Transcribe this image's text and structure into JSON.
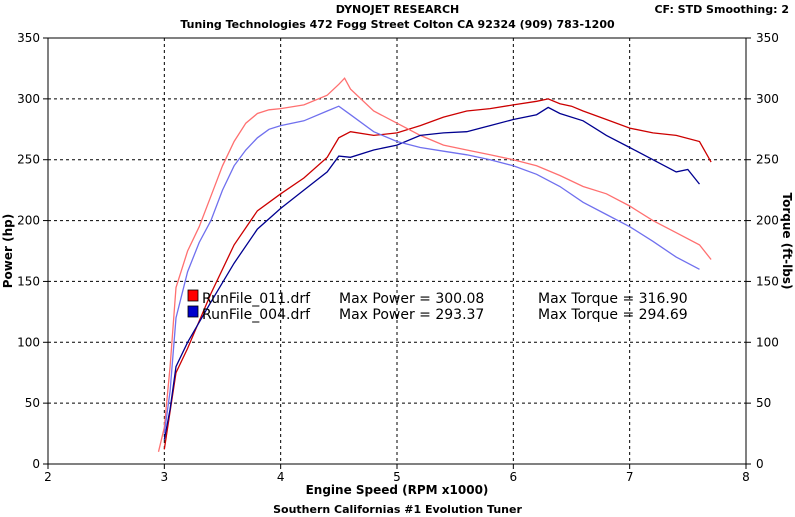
{
  "header": {
    "brand": "DYNOJET RESEARCH",
    "shop_line": "Tuning Technologies 472 Fogg Street Colton CA 92324 (909) 783-1200",
    "settings": "CF: STD  Smoothing: 2"
  },
  "footer": {
    "tagline": "Southern Californias #1 Evolution Tuner"
  },
  "chart_data": {
    "type": "line",
    "xlabel": "Engine Speed (RPM x1000)",
    "ylabel": "Power (hp)",
    "y2label": "Torque (ft-lbs)",
    "xlim": [
      2,
      8
    ],
    "ylim": [
      0,
      350
    ],
    "y2lim": [
      0,
      350
    ],
    "x_ticks": [
      2,
      3,
      4,
      5,
      6,
      7,
      8
    ],
    "y_ticks": [
      0,
      50,
      100,
      150,
      200,
      250,
      300,
      350
    ],
    "grid": true,
    "legend_position": "center-left",
    "legend": [
      {
        "file": "RunFile_011.drf",
        "max_power_label": "Max Power = 300.08",
        "max_torque_label": "Max Torque = 316.90",
        "color": "#ff0000"
      },
      {
        "file": "RunFile_004.drf",
        "max_power_label": "Max Power = 293.37",
        "max_torque_label": "Max Torque = 294.69",
        "color": "#0000cc"
      }
    ],
    "series": [
      {
        "name": "RunFile_011.drf",
        "measure": "power",
        "color": "#cc0000",
        "x": [
          3.0,
          3.1,
          3.2,
          3.4,
          3.6,
          3.8,
          4.0,
          4.2,
          4.4,
          4.5,
          4.6,
          4.8,
          5.0,
          5.2,
          5.4,
          5.6,
          5.8,
          6.0,
          6.2,
          6.3,
          6.4,
          6.5,
          6.6,
          6.8,
          7.0,
          7.2,
          7.4,
          7.6,
          7.7
        ],
        "y": [
          12,
          75,
          95,
          140,
          180,
          208,
          222,
          235,
          252,
          268,
          273,
          270,
          272,
          278,
          285,
          290,
          292,
          295,
          298,
          300,
          296,
          294,
          290,
          283,
          276,
          272,
          270,
          265,
          248
        ]
      },
      {
        "name": "RunFile_011.drf",
        "measure": "torque",
        "color": "#ff7070",
        "x": [
          2.95,
          3.0,
          3.05,
          3.1,
          3.2,
          3.3,
          3.4,
          3.5,
          3.6,
          3.7,
          3.8,
          3.9,
          4.0,
          4.2,
          4.4,
          4.5,
          4.55,
          4.6,
          4.8,
          5.0,
          5.2,
          5.4,
          5.6,
          5.8,
          6.0,
          6.2,
          6.4,
          6.6,
          6.8,
          7.0,
          7.2,
          7.4,
          7.6,
          7.7
        ],
        "y": [
          10,
          30,
          80,
          145,
          175,
          195,
          220,
          245,
          265,
          280,
          288,
          291,
          292,
          295,
          303,
          312,
          317,
          308,
          290,
          280,
          270,
          262,
          258,
          254,
          250,
          245,
          237,
          228,
          222,
          212,
          200,
          190,
          180,
          168
        ]
      },
      {
        "name": "RunFile_004.drf",
        "measure": "power",
        "color": "#000090",
        "x": [
          3.0,
          3.05,
          3.1,
          3.2,
          3.4,
          3.6,
          3.8,
          4.0,
          4.2,
          4.4,
          4.5,
          4.6,
          4.8,
          5.0,
          5.2,
          5.4,
          5.6,
          5.8,
          6.0,
          6.2,
          6.3,
          6.4,
          6.6,
          6.8,
          7.0,
          7.2,
          7.4,
          7.5,
          7.6
        ],
        "y": [
          20,
          45,
          80,
          100,
          133,
          165,
          193,
          210,
          225,
          240,
          253,
          252,
          258,
          262,
          270,
          272,
          273,
          278,
          283,
          287,
          293,
          288,
          282,
          270,
          260,
          250,
          240,
          242,
          230
        ]
      },
      {
        "name": "RunFile_004.drf",
        "measure": "torque",
        "color": "#7070ee",
        "x": [
          3.0,
          3.05,
          3.1,
          3.2,
          3.3,
          3.4,
          3.5,
          3.6,
          3.7,
          3.8,
          3.9,
          4.0,
          4.2,
          4.4,
          4.5,
          4.6,
          4.8,
          5.0,
          5.2,
          5.4,
          5.6,
          5.8,
          6.0,
          6.2,
          6.4,
          6.6,
          6.8,
          7.0,
          7.2,
          7.4,
          7.6
        ],
        "y": [
          25,
          60,
          120,
          158,
          182,
          200,
          225,
          245,
          258,
          268,
          275,
          278,
          282,
          290,
          294,
          287,
          273,
          265,
          260,
          257,
          254,
          250,
          245,
          238,
          228,
          215,
          205,
          195,
          183,
          170,
          160
        ]
      }
    ]
  }
}
